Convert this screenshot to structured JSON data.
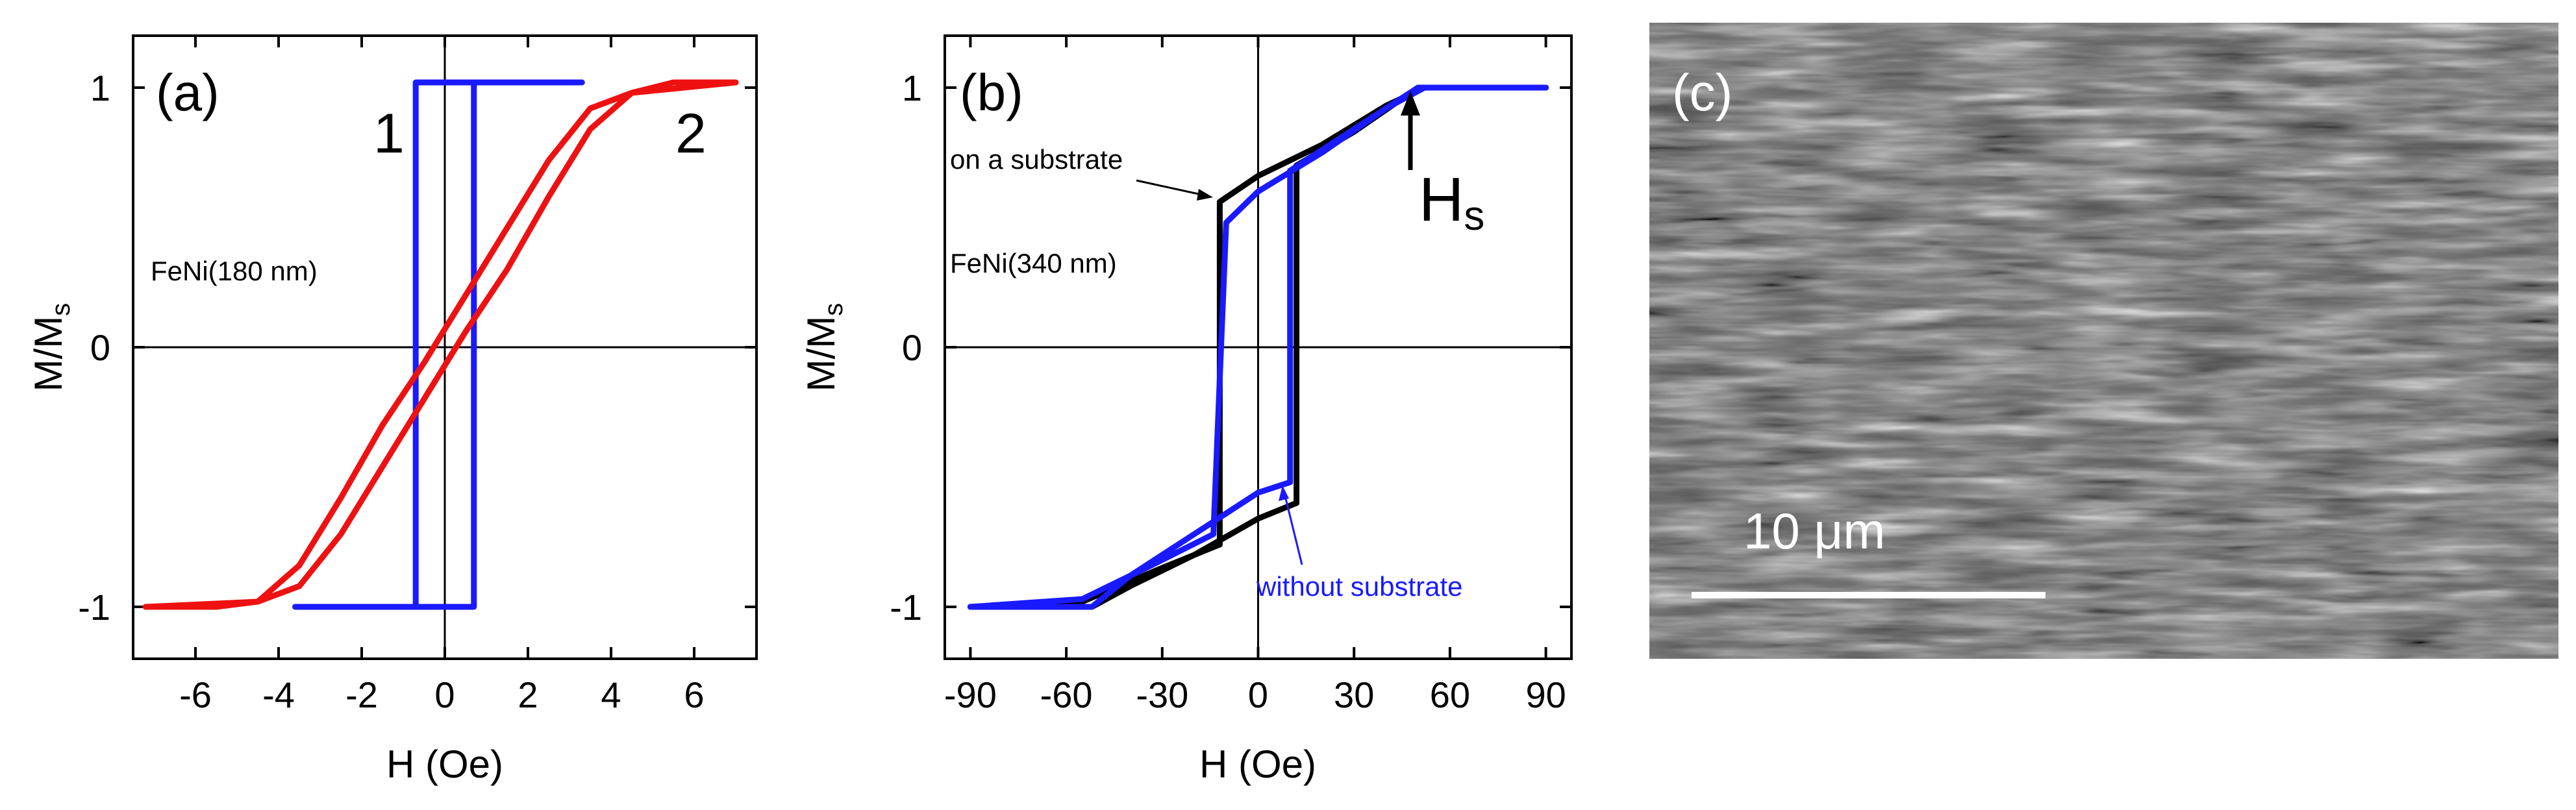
{
  "chart_data": [
    {
      "panel": "(a)",
      "type": "line",
      "xlabel": "H (Oe)",
      "ylabel": "M/M",
      "ylabel_sub": "s",
      "xlim": [
        -7.5,
        7.5
      ],
      "ylim": [
        -1.2,
        1.2
      ],
      "xticks": [
        -6,
        -4,
        -2,
        0,
        2,
        4,
        6
      ],
      "yticks": [
        -1,
        0,
        1
      ],
      "zero_lines": true,
      "annotation_text": "FeNi(180 nm)",
      "series": [
        {
          "name": "1",
          "color": "#1a1aff",
          "x": [
            -3.6,
            -0.7,
            -0.7,
            3.3
          ],
          "y": [
            -1.0,
            -1.0,
            1.02,
            1.02
          ],
          "x_return": [
            3.3,
            0.7,
            0.7,
            -3.6
          ],
          "y_return": [
            1.02,
            1.02,
            -1.0,
            -1.0
          ]
        },
        {
          "name": "2",
          "color": "#ee1111",
          "x": [
            -7.2,
            -4.5,
            -3.5,
            -2.5,
            -1.5,
            -0.5,
            0.5,
            1.5,
            2.5,
            3.5,
            4.5,
            5.5,
            7.0
          ],
          "y": [
            -1.0,
            -0.98,
            -0.92,
            -0.72,
            -0.46,
            -0.2,
            0.06,
            0.3,
            0.58,
            0.84,
            0.98,
            1.02,
            1.02
          ],
          "x_return": [
            7.0,
            4.5,
            3.5,
            2.5,
            1.5,
            0.5,
            -0.5,
            -1.5,
            -2.5,
            -3.5,
            -4.5,
            -5.5,
            -7.2
          ],
          "y_return": [
            1.02,
            0.98,
            0.92,
            0.72,
            0.46,
            0.2,
            -0.06,
            -0.3,
            -0.58,
            -0.84,
            -0.98,
            -1.0,
            -1.0
          ]
        }
      ]
    },
    {
      "panel": "(b)",
      "type": "line",
      "xlabel": "H (Oe)",
      "ylabel": "M/M",
      "ylabel_sub": "s",
      "xlim": [
        -98,
        98
      ],
      "ylim": [
        -1.2,
        1.2
      ],
      "xticks": [
        -90,
        -60,
        -30,
        0,
        30,
        60,
        90
      ],
      "yticks": [
        -1,
        0,
        1
      ],
      "zero_lines": true,
      "annotation_text": "FeNi(340 nm)",
      "series": [
        {
          "name": "on a substrate",
          "color": "#000000",
          "x": [
            -90,
            -55,
            -30,
            -12,
            -12,
            0,
            20,
            40,
            52,
            90
          ],
          "y": [
            -1.0,
            -0.98,
            -0.85,
            -0.76,
            0.56,
            0.66,
            0.78,
            0.93,
            1.0,
            1.0
          ],
          "x_return": [
            90,
            50,
            30,
            12,
            12,
            0,
            -20,
            -40,
            -52,
            -90
          ],
          "y_return": [
            1.0,
            1.0,
            0.83,
            0.7,
            -0.6,
            -0.66,
            -0.8,
            -0.92,
            -1.0,
            -1.0
          ]
        },
        {
          "name": "without substrate",
          "color": "#1a1aff",
          "x": [
            -90,
            -55,
            -35,
            -14,
            -10,
            0,
            20,
            40,
            52,
            90
          ],
          "y": [
            -1.0,
            -0.97,
            -0.85,
            -0.72,
            0.48,
            0.6,
            0.75,
            0.92,
            1.0,
            1.0
          ],
          "x_return": [
            90,
            50,
            30,
            10,
            10,
            0,
            -20,
            -40,
            -52,
            -90
          ],
          "y_return": [
            1.0,
            1.0,
            0.84,
            0.68,
            -0.52,
            -0.56,
            -0.72,
            -0.88,
            -1.0,
            -1.0
          ]
        }
      ],
      "annotations": [
        "on a substrate",
        "without substrate"
      ],
      "hs_label": "H",
      "hs_sub": "s"
    }
  ],
  "image_panel": {
    "label": "(c)",
    "scale_bar_label": "10 μm"
  }
}
